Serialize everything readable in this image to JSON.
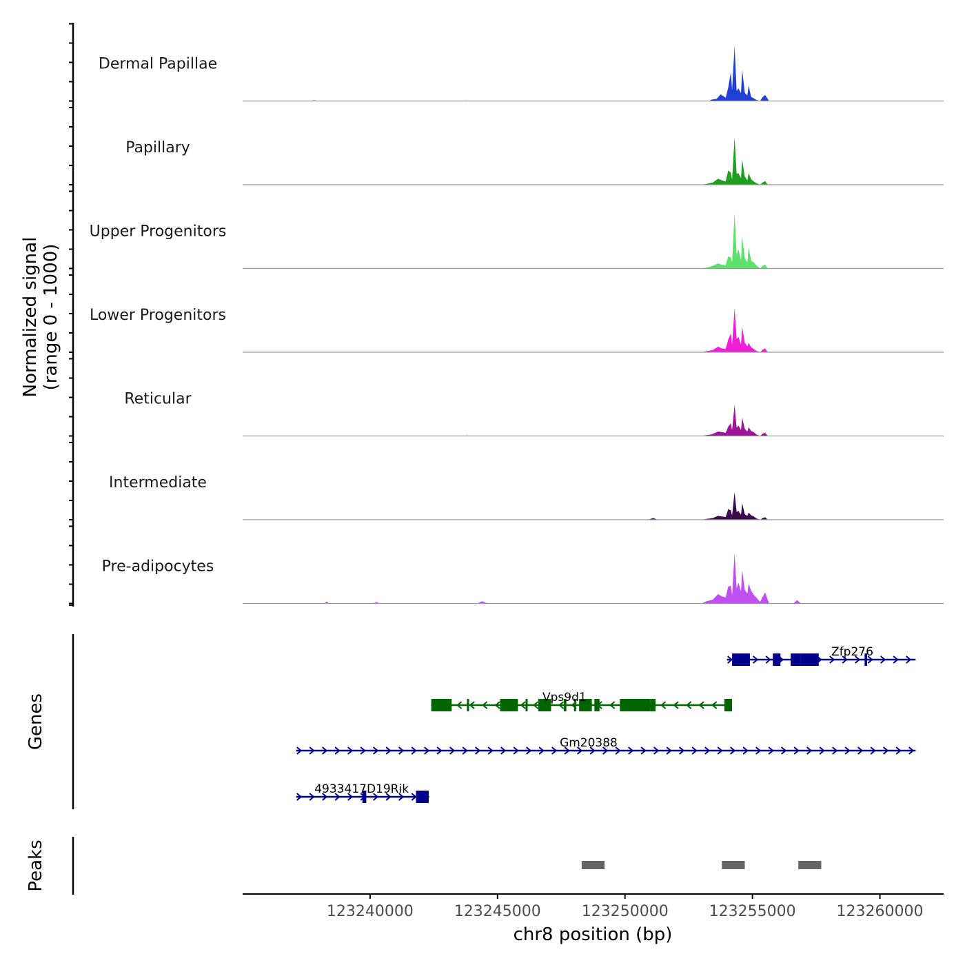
{
  "chart_data": {
    "type": "area",
    "title": "",
    "xlabel": "chr8 position (bp)",
    "ylabel_line1": "Normalized signal",
    "ylabel_line2": "(range 0 - 1000)",
    "xlim": [
      123235000,
      123262500
    ],
    "ylim": [
      0,
      1000
    ],
    "x_ticks": [
      123240000,
      123245000,
      123250000,
      123255000,
      123260000
    ],
    "x_tick_labels": [
      "123240000",
      "123245000",
      "123250000",
      "123255000",
      "123260000"
    ],
    "baseline_color": "#999999",
    "tracks": [
      {
        "name": "Dermal Papillae",
        "color": "#1f3fd6",
        "points": [
          [
            123235000,
            0
          ],
          [
            123237600,
            0
          ],
          [
            123237800,
            12
          ],
          [
            123238000,
            0
          ],
          [
            123243700,
            0
          ],
          [
            123243800,
            10
          ],
          [
            123243900,
            0
          ],
          [
            123253300,
            0
          ],
          [
            123253400,
            25
          ],
          [
            123253600,
            40
          ],
          [
            123253750,
            120
          ],
          [
            123253850,
            90
          ],
          [
            123253950,
            60
          ],
          [
            123254050,
            240
          ],
          [
            123254150,
            520
          ],
          [
            123254200,
            200
          ],
          [
            123254300,
            1000
          ],
          [
            123254380,
            180
          ],
          [
            123254450,
            230
          ],
          [
            123254550,
            140
          ],
          [
            123254600,
            560
          ],
          [
            123254700,
            150
          ],
          [
            123254800,
            100
          ],
          [
            123254850,
            280
          ],
          [
            123254950,
            70
          ],
          [
            123255050,
            50
          ],
          [
            123255150,
            20
          ],
          [
            123255300,
            0
          ],
          [
            123255400,
            70
          ],
          [
            123255500,
            110
          ],
          [
            123255650,
            0
          ],
          [
            123262500,
            0
          ]
        ]
      },
      {
        "name": "Papillary",
        "color": "#1f9e1f",
        "points": [
          [
            123235000,
            0
          ],
          [
            123253000,
            0
          ],
          [
            123253200,
            15
          ],
          [
            123253450,
            40
          ],
          [
            123253650,
            110
          ],
          [
            123253800,
            80
          ],
          [
            123253950,
            60
          ],
          [
            123254050,
            260
          ],
          [
            123254150,
            220
          ],
          [
            123254200,
            90
          ],
          [
            123254300,
            860
          ],
          [
            123254380,
            200
          ],
          [
            123254450,
            210
          ],
          [
            123254550,
            120
          ],
          [
            123254600,
            450
          ],
          [
            123254700,
            150
          ],
          [
            123254800,
            80
          ],
          [
            123254850,
            210
          ],
          [
            123254950,
            100
          ],
          [
            123255050,
            60
          ],
          [
            123255150,
            30
          ],
          [
            123255300,
            0
          ],
          [
            123255400,
            40
          ],
          [
            123255500,
            65
          ],
          [
            123255600,
            0
          ],
          [
            123262500,
            0
          ]
        ]
      },
      {
        "name": "Upper Progenitors",
        "color": "#5ee06e",
        "points": [
          [
            123235000,
            0
          ],
          [
            123253000,
            0
          ],
          [
            123253200,
            15
          ],
          [
            123253400,
            40
          ],
          [
            123253650,
            90
          ],
          [
            123253800,
            70
          ],
          [
            123253950,
            60
          ],
          [
            123254050,
            220
          ],
          [
            123254150,
            200
          ],
          [
            123254200,
            110
          ],
          [
            123254300,
            1000
          ],
          [
            123254380,
            250
          ],
          [
            123254450,
            350
          ],
          [
            123254550,
            150
          ],
          [
            123254600,
            580
          ],
          [
            123254700,
            190
          ],
          [
            123254800,
            110
          ],
          [
            123254850,
            380
          ],
          [
            123254950,
            140
          ],
          [
            123255050,
            110
          ],
          [
            123255150,
            60
          ],
          [
            123255300,
            0
          ],
          [
            123255400,
            50
          ],
          [
            123255500,
            70
          ],
          [
            123255600,
            0
          ],
          [
            123262500,
            0
          ]
        ]
      },
      {
        "name": "Lower Progenitors",
        "color": "#f01ed8",
        "points": [
          [
            123235000,
            0
          ],
          [
            123243700,
            0
          ],
          [
            123243800,
            10
          ],
          [
            123243900,
            0
          ],
          [
            123253000,
            0
          ],
          [
            123253200,
            20
          ],
          [
            123253450,
            40
          ],
          [
            123253650,
            100
          ],
          [
            123253800,
            70
          ],
          [
            123253950,
            60
          ],
          [
            123254050,
            230
          ],
          [
            123254150,
            340
          ],
          [
            123254200,
            140
          ],
          [
            123254300,
            800
          ],
          [
            123254380,
            240
          ],
          [
            123254450,
            280
          ],
          [
            123254550,
            140
          ],
          [
            123254600,
            460
          ],
          [
            123254700,
            170
          ],
          [
            123254800,
            110
          ],
          [
            123254850,
            170
          ],
          [
            123254950,
            90
          ],
          [
            123255050,
            60
          ],
          [
            123255150,
            25
          ],
          [
            123255300,
            0
          ],
          [
            123255400,
            45
          ],
          [
            123255500,
            70
          ],
          [
            123255600,
            0
          ],
          [
            123262500,
            0
          ]
        ]
      },
      {
        "name": "Reticular",
        "color": "#a0149a",
        "points": [
          [
            123235000,
            0
          ],
          [
            123243700,
            0
          ],
          [
            123243800,
            10
          ],
          [
            123243900,
            0
          ],
          [
            123253000,
            0
          ],
          [
            123253200,
            15
          ],
          [
            123253400,
            30
          ],
          [
            123253650,
            80
          ],
          [
            123253800,
            70
          ],
          [
            123253950,
            60
          ],
          [
            123254050,
            170
          ],
          [
            123254150,
            230
          ],
          [
            123254200,
            110
          ],
          [
            123254300,
            560
          ],
          [
            123254380,
            150
          ],
          [
            123254450,
            190
          ],
          [
            123254550,
            110
          ],
          [
            123254600,
            330
          ],
          [
            123254700,
            130
          ],
          [
            123254800,
            80
          ],
          [
            123254850,
            160
          ],
          [
            123254950,
            90
          ],
          [
            123255050,
            70
          ],
          [
            123255150,
            30
          ],
          [
            123255300,
            0
          ],
          [
            123255400,
            40
          ],
          [
            123255500,
            60
          ],
          [
            123255600,
            0
          ],
          [
            123262500,
            0
          ]
        ]
      },
      {
        "name": "Intermediate",
        "color": "#3b0a4f",
        "points": [
          [
            123235000,
            0
          ],
          [
            123250900,
            0
          ],
          [
            123251100,
            30
          ],
          [
            123251300,
            0
          ],
          [
            123253000,
            0
          ],
          [
            123253200,
            15
          ],
          [
            123253450,
            30
          ],
          [
            123253650,
            70
          ],
          [
            123253800,
            60
          ],
          [
            123253950,
            50
          ],
          [
            123254050,
            190
          ],
          [
            123254150,
            170
          ],
          [
            123254200,
            80
          ],
          [
            123254300,
            500
          ],
          [
            123254380,
            140
          ],
          [
            123254450,
            160
          ],
          [
            123254550,
            90
          ],
          [
            123254600,
            300
          ],
          [
            123254700,
            100
          ],
          [
            123254800,
            70
          ],
          [
            123254850,
            130
          ],
          [
            123254950,
            80
          ],
          [
            123255050,
            60
          ],
          [
            123255150,
            25
          ],
          [
            123255300,
            0
          ],
          [
            123255400,
            30
          ],
          [
            123255500,
            45
          ],
          [
            123255600,
            0
          ],
          [
            123262500,
            0
          ]
        ]
      },
      {
        "name": "Pre-adipocytes",
        "color": "#c04ff0",
        "points": [
          [
            123235000,
            0
          ],
          [
            123238200,
            0
          ],
          [
            123238300,
            35
          ],
          [
            123238400,
            0
          ],
          [
            123240100,
            0
          ],
          [
            123240250,
            25
          ],
          [
            123240400,
            0
          ],
          [
            123244200,
            0
          ],
          [
            123244400,
            40
          ],
          [
            123244600,
            0
          ],
          [
            123253000,
            0
          ],
          [
            123253200,
            40
          ],
          [
            123253450,
            70
          ],
          [
            123253650,
            170
          ],
          [
            123253800,
            130
          ],
          [
            123253950,
            110
          ],
          [
            123254050,
            310
          ],
          [
            123254150,
            320
          ],
          [
            123254200,
            150
          ],
          [
            123254300,
            920
          ],
          [
            123254380,
            270
          ],
          [
            123254450,
            380
          ],
          [
            123254550,
            220
          ],
          [
            123254600,
            600
          ],
          [
            123254700,
            250
          ],
          [
            123254800,
            180
          ],
          [
            123254850,
            360
          ],
          [
            123254950,
            230
          ],
          [
            123255050,
            160
          ],
          [
            123255150,
            110
          ],
          [
            123255300,
            30
          ],
          [
            123255400,
            120
          ],
          [
            123255500,
            200
          ],
          [
            123255650,
            0
          ],
          [
            123256600,
            0
          ],
          [
            123256750,
            60
          ],
          [
            123256900,
            0
          ],
          [
            123262500,
            0
          ]
        ]
      }
    ],
    "genes_label": "Genes",
    "genes": [
      {
        "name": "Zfp276",
        "strand": "+",
        "color": "#00008b",
        "row": 0,
        "start": 123254000,
        "end": 123261400,
        "exons": [
          [
            123254200,
            123254900
          ],
          [
            123255800,
            123256100
          ],
          [
            123256500,
            123256900
          ],
          [
            123256900,
            123257600
          ],
          [
            123257000,
            123257400
          ],
          [
            123259400,
            123259500
          ]
        ]
      },
      {
        "name": "Vps9d1",
        "strand": "-",
        "color": "#006400",
        "row": 1,
        "start": 123242400,
        "end": 123254200,
        "exons": [
          [
            123242400,
            123243200
          ],
          [
            123243800,
            123243850
          ],
          [
            123245100,
            123245800
          ],
          [
            123246100,
            123246150
          ],
          [
            123246600,
            123247100
          ],
          [
            123247600,
            123247700
          ],
          [
            123248000,
            123248050
          ],
          [
            123248200,
            123248700
          ],
          [
            123248800,
            123249000
          ],
          [
            123249800,
            123251000
          ],
          [
            123251000,
            123251100
          ],
          [
            123251100,
            123251200
          ],
          [
            123253900,
            123254200
          ]
        ]
      },
      {
        "name": "Gm20388",
        "strand": "+",
        "color": "#00008b",
        "row": 2,
        "start": 123237100,
        "end": 123261400,
        "exons": []
      },
      {
        "name": "4933417D19Rik",
        "strand": "+",
        "color": "#00008b",
        "row": 3,
        "start": 123237100,
        "end": 123242300,
        "exons": [
          [
            123239700,
            123239850
          ],
          [
            123241800,
            123242300
          ]
        ]
      }
    ],
    "peaks_label": "Peaks",
    "peaks_color": "#666666",
    "peaks": [
      [
        123248300,
        123249200
      ],
      [
        123253800,
        123254700
      ],
      [
        123256800,
        123257700
      ]
    ]
  }
}
